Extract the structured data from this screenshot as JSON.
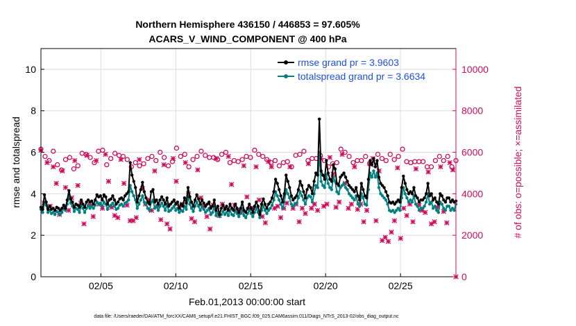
{
  "chart_data": {
    "type": "line",
    "title": "Northern Hemisphere 436150 / 446853 = 97.605%",
    "subtitle": "ACARS_V_WIND_COMPONENT @ 400 hPa",
    "xlabel": "Feb.01,2013 00:00:00 start",
    "ylabel": "rmse and totalspread",
    "y2label": "# of obs: o=possible; ×=assimilated",
    "footer": "data file: /Users/raeder/DAI/ATM_forcXX/CAM6_setup/f.e21.FHIST_BGC.f09_025.CAM6assim.011/Diags_NTrS_2013-02/obs_diag_output.nc",
    "xlim": [
      1.0,
      28.7
    ],
    "ylim": [
      0,
      11
    ],
    "y2lim": [
      0,
      11000
    ],
    "x_ticks": [
      5,
      10,
      15,
      20,
      25
    ],
    "x_tick_labels": [
      "02/05",
      "02/10",
      "02/15",
      "02/20",
      "02/25"
    ],
    "y_ticks": [
      0,
      2,
      4,
      6,
      8,
      10
    ],
    "y_tick_labels": [
      "0",
      "2",
      "4",
      "6",
      "8",
      "10"
    ],
    "y2_ticks": [
      0,
      2000,
      4000,
      6000,
      8000,
      10000
    ],
    "y2_tick_labels": [
      "0",
      "2000",
      "4000",
      "6000",
      "8000",
      "10000"
    ],
    "legend_location": "top-right",
    "colors": {
      "rmse": "#000000",
      "spread": "#008080",
      "obs": "#d10a5b",
      "legend_text": "#1f50e0"
    },
    "series": [
      {
        "name": "rmse grand pr = 3.9603",
        "key": "rmse",
        "values": [
          3.35,
          3.25,
          3.95,
          3.6,
          3.25,
          3.4,
          3.25,
          3.3,
          3.2,
          3.35,
          3.3,
          3.2,
          3.3,
          3.45,
          3.3,
          3.7,
          4.15,
          3.75,
          3.6,
          3.35,
          3.5,
          3.45,
          3.35,
          3.7,
          3.5,
          3.35,
          3.6,
          3.7,
          3.6,
          3.65,
          3.5,
          3.7,
          3.95,
          3.85,
          3.9,
          3.7,
          3.95,
          3.85,
          3.5,
          3.7,
          3.75,
          3.9,
          3.7,
          3.5,
          3.6,
          3.75,
          3.8,
          3.7,
          3.9,
          4.0,
          4.1,
          5.5,
          4.9,
          4.6,
          4.3,
          3.6,
          3.9,
          4.2,
          4.55,
          4.1,
          3.8,
          3.6,
          3.5,
          4.1,
          4.2,
          3.6,
          3.7,
          3.5,
          3.7,
          3.85,
          3.7,
          3.5,
          3.8,
          3.4,
          3.5,
          3.6,
          3.7,
          3.5,
          3.6,
          3.3,
          3.5,
          3.4,
          3.8,
          3.55,
          4.3,
          3.85,
          3.6,
          3.4,
          3.7,
          3.95,
          3.75,
          3.5,
          3.7,
          3.55,
          3.4,
          3.5,
          3.6,
          3.3,
          3.4,
          3.7,
          3.2,
          3.4,
          3.0,
          3.3,
          3.45,
          3.25,
          3.4,
          3.2,
          3.5,
          3.3,
          3.2,
          3.5,
          3.3,
          3.1,
          3.3,
          3.6,
          3.2,
          3.1,
          3.3,
          3.5,
          3.3,
          3.1,
          3.4,
          3.6,
          3.4,
          3.0,
          3.5,
          3.75,
          3.5,
          3.3,
          3.5,
          3.6,
          3.8,
          4.1,
          4.7,
          4.5,
          4.2,
          3.9,
          3.6,
          4.0,
          4.9,
          4.6,
          4.3,
          3.9,
          3.7,
          3.8,
          3.9,
          4.2,
          4.6,
          4.4,
          4.1,
          3.8,
          4.2,
          4.4,
          4.3,
          4.0,
          4.6,
          5.0,
          4.9,
          7.6,
          5.1,
          4.9,
          4.7,
          5.6,
          5.0,
          4.7,
          4.6,
          5.4,
          5.2,
          4.5,
          4.4,
          4.8,
          4.9,
          5.0,
          4.8,
          4.6,
          4.4,
          4.3,
          4.2,
          4.1,
          4.3,
          3.9,
          3.7,
          4.5,
          4.2,
          3.9,
          3.8,
          4.7,
          5.6,
          5.4,
          5.7,
          5.3,
          5.6,
          4.8,
          4.5,
          4.4,
          4.3,
          4.1,
          3.9,
          3.6,
          3.55,
          3.6,
          3.5,
          3.6,
          3.7,
          3.6,
          4.3,
          4.85,
          4.5,
          4.2,
          4.0,
          4.1,
          4.0,
          4.3,
          3.9,
          3.8,
          3.6,
          3.7,
          3.7,
          3.8,
          4.0,
          4.5,
          3.9,
          4.0,
          3.7,
          3.8,
          3.6,
          3.5,
          4.0,
          3.9,
          3.7,
          3.6,
          3.8,
          3.8,
          3.6,
          3.7,
          3.6,
          3.65
        ]
      },
      {
        "name": "totalspread grand pr = 3.6634",
        "key": "spread",
        "values": [
          3.25,
          3.1,
          3.6,
          3.45,
          3.1,
          3.2,
          3.05,
          3.1,
          3.0,
          3.15,
          3.1,
          3.0,
          3.1,
          3.3,
          3.2,
          3.5,
          3.9,
          3.55,
          3.4,
          3.15,
          3.3,
          3.25,
          3.1,
          3.45,
          3.3,
          3.1,
          3.3,
          3.45,
          3.3,
          3.4,
          3.3,
          3.45,
          3.6,
          3.5,
          3.55,
          3.4,
          3.6,
          3.5,
          3.25,
          3.4,
          3.45,
          3.55,
          3.4,
          3.25,
          3.3,
          3.45,
          3.5,
          3.4,
          3.55,
          3.6,
          3.7,
          4.4,
          4.1,
          3.9,
          3.7,
          3.3,
          3.5,
          3.7,
          3.9,
          3.6,
          3.5,
          3.3,
          3.2,
          3.6,
          3.7,
          3.3,
          3.4,
          3.2,
          3.4,
          3.55,
          3.4,
          3.2,
          3.5,
          3.15,
          3.2,
          3.3,
          3.4,
          3.2,
          3.3,
          3.1,
          3.2,
          3.15,
          3.4,
          3.25,
          3.9,
          3.5,
          3.3,
          3.15,
          3.4,
          3.6,
          3.4,
          3.2,
          3.4,
          3.25,
          3.1,
          3.2,
          3.3,
          3.0,
          3.1,
          3.4,
          2.95,
          3.1,
          2.9,
          3.0,
          3.15,
          3.0,
          3.1,
          2.95,
          3.2,
          3.0,
          2.95,
          3.2,
          3.05,
          2.9,
          3.05,
          3.3,
          2.95,
          2.85,
          3.05,
          3.2,
          3.05,
          2.9,
          3.1,
          3.3,
          3.1,
          2.85,
          3.2,
          3.4,
          3.2,
          3.05,
          3.2,
          3.3,
          3.45,
          3.7,
          4.1,
          3.9,
          3.7,
          3.5,
          3.3,
          3.6,
          4.2,
          4.0,
          3.8,
          3.5,
          3.4,
          3.5,
          3.55,
          3.8,
          4.1,
          3.9,
          3.7,
          3.5,
          3.8,
          3.9,
          3.85,
          3.6,
          4.0,
          4.4,
          4.3,
          6.0,
          4.6,
          4.4,
          4.3,
          4.9,
          4.5,
          4.3,
          4.2,
          4.8,
          4.6,
          4.1,
          4.0,
          4.3,
          4.4,
          4.5,
          4.3,
          4.2,
          4.0,
          3.9,
          3.8,
          3.7,
          3.9,
          3.5,
          3.4,
          4.0,
          3.8,
          3.5,
          3.45,
          4.2,
          5.0,
          4.8,
          5.1,
          4.8,
          5.0,
          4.3,
          4.0,
          3.9,
          3.8,
          3.7,
          3.5,
          3.2,
          3.15,
          3.2,
          3.1,
          3.2,
          3.3,
          3.2,
          3.8,
          4.3,
          4.0,
          3.8,
          3.6,
          3.7,
          3.6,
          3.9,
          3.5,
          3.4,
          3.2,
          3.3,
          3.3,
          3.4,
          3.6,
          4.0,
          3.5,
          3.6,
          3.3,
          3.4,
          3.2,
          3.1,
          3.6,
          3.5,
          3.3,
          3.2,
          3.4,
          3.4,
          3.2,
          3.3,
          3.2,
          3.5
        ]
      },
      {
        "name": "possible obs",
        "key": "possible",
        "values": [
          6150,
          5800,
          5600,
          6050,
          5400,
          5150,
          5650,
          5750,
          5200,
          5350,
          5950,
          5900,
          5750,
          5500,
          6050,
          6100,
          5400,
          5700,
          5950,
          5850,
          5800,
          5650,
          5300,
          5500,
          5350,
          5450,
          5700,
          5800,
          5600,
          6000,
          5750,
          5350,
          5550,
          6200,
          5800,
          5900,
          5300,
          5650,
          5800,
          6050,
          5850,
          5750,
          5750,
          5650,
          5900,
          6000,
          5500,
          5600,
          5550,
          5650,
          5800,
          5750,
          6100,
          5900,
          5800,
          5650,
          5500,
          5600,
          5350,
          5500,
          5550,
          5300,
          5850,
          5900,
          6050,
          5600,
          5700,
          5700,
          5850,
          5600,
          5300,
          5450,
          5500,
          6150,
          6000,
          5800,
          5500,
          5600,
          5600,
          5800,
          5450,
          5400,
          5900,
          5700,
          5600,
          5900,
          5650,
          5800,
          6150,
          5550,
          5500,
          5550,
          5550,
          5550,
          5300,
          5300,
          5600,
          5800,
          5600,
          5800,
          5300,
          5600
        ]
      },
      {
        "name": "assimilated obs",
        "key": "assimilated",
        "values": [
          6100,
          3550,
          5500,
          3400,
          5300,
          4500,
          3000,
          5100,
          4300,
          3200,
          3800,
          5600,
          4400,
          3550,
          2550,
          5850,
          3450,
          2900,
          5600,
          3500,
          3300,
          5900,
          4600,
          3350,
          2950,
          2850,
          5650,
          4500,
          3450,
          2700,
          2700,
          2850,
          5650,
          4250,
          3500,
          3700,
          3200,
          5100,
          3400,
          2750,
          5400,
          2550,
          2300,
          5700,
          4600,
          3350,
          3500,
          5500,
          4000,
          2800,
          2650,
          5150,
          3800,
          3400,
          2900,
          2300,
          3450,
          5700,
          2950,
          3500,
          3300,
          5800,
          4450,
          3450,
          3200,
          3100,
          5350,
          3850,
          3300,
          3300,
          5300,
          3700,
          2900,
          2600,
          5550,
          5300,
          3300,
          3400,
          2850,
          3300,
          3550,
          5300,
          3300,
          3500,
          2650,
          3300,
          3050,
          5450,
          3300,
          3500,
          3200,
          5700,
          3400,
          3500,
          5750,
          4950,
          3350,
          3600,
          5900,
          4500,
          3300,
          3500,
          5300,
          3250,
          3500,
          2650,
          3200,
          5450,
          5700,
          2700,
          5100,
          1750,
          1900,
          1700,
          2150,
          2700,
          5250,
          1850,
          3300,
          2950,
          3500,
          2650,
          5200,
          3450,
          3200,
          3100,
          5050,
          2550,
          2650,
          3350,
          5300,
          3150,
          2600,
          5500,
          5150,
          0
        ]
      }
    ]
  }
}
